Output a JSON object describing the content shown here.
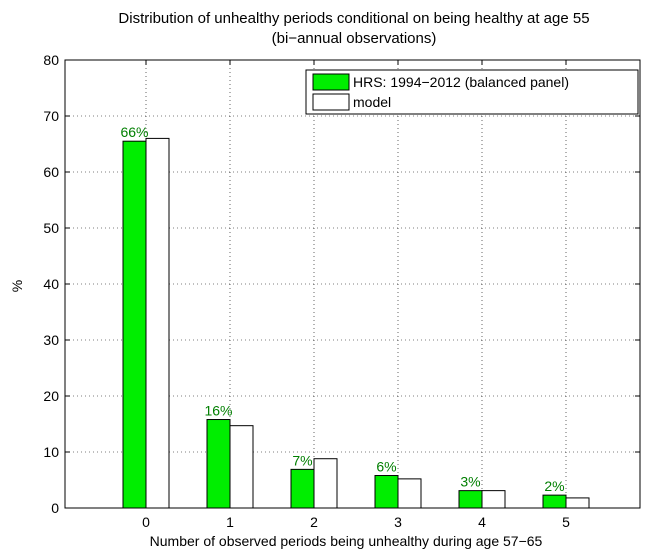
{
  "chart_data": {
    "type": "bar",
    "title": "Distribution of unhealthy periods conditional on being healthy at age 55",
    "subtitle": "(bi−annual observations)",
    "xlabel": "Number of observed periods being unhealthy during age 57−65",
    "ylabel": "%",
    "categories": [
      "0",
      "1",
      "2",
      "3",
      "4",
      "5"
    ],
    "ylim": [
      0,
      80
    ],
    "yticks": [
      "0",
      "10",
      "20",
      "30",
      "40",
      "50",
      "60",
      "70",
      "80"
    ],
    "grid": true,
    "legend_position": "top-right",
    "series": [
      {
        "name": "HRS: 1994−2012 (balanced panel)",
        "values": [
          65.5,
          15.8,
          6.9,
          5.8,
          3.1,
          2.3
        ],
        "labels": [
          "66%",
          "16%",
          "7%",
          "6%",
          "3%",
          "2%"
        ],
        "color": "#00ee00"
      },
      {
        "name": "model",
        "values": [
          66.0,
          14.7,
          8.8,
          5.2,
          3.1,
          1.8
        ],
        "color": "#ffffff"
      }
    ],
    "label_color": "#007f00"
  }
}
